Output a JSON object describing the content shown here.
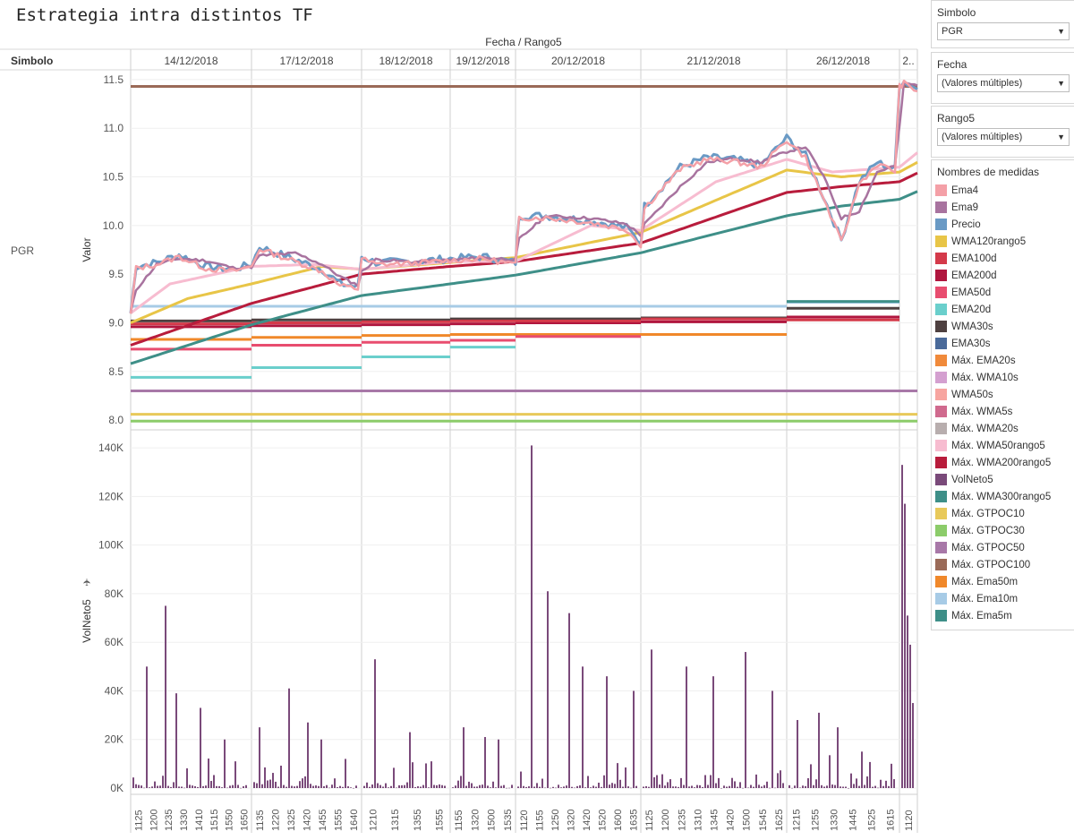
{
  "title": "Estrategia intra distintos TF",
  "header": {
    "top_label": "Fecha / Rango5",
    "row_header": "Simbolo",
    "row_value": "PGR"
  },
  "filters": [
    {
      "label": "Simbolo",
      "value": "PGR"
    },
    {
      "label": "Fecha",
      "value": "(Valores múltiples)"
    },
    {
      "label": "Rango5",
      "value": "(Valores múltiples)"
    }
  ],
  "legend": {
    "title": "Nombres de medidas",
    "items": [
      {
        "name": "Ema4",
        "color": "#f4a0a7"
      },
      {
        "name": "Ema9",
        "color": "#a8739f"
      },
      {
        "name": "Precio",
        "color": "#6a9ac5"
      },
      {
        "name": "WMA120rango5",
        "color": "#e8c547"
      },
      {
        "name": "EMA100d",
        "color": "#d43a4a"
      },
      {
        "name": "EMA200d",
        "color": "#b0163e"
      },
      {
        "name": "EMA50d",
        "color": "#e84d6f"
      },
      {
        "name": "EMA20d",
        "color": "#6acfcc"
      },
      {
        "name": "WMA30s",
        "color": "#4e4040"
      },
      {
        "name": "EMA30s",
        "color": "#4a6a9a"
      },
      {
        "name": "Máx. EMA20s",
        "color": "#f08a3b"
      },
      {
        "name": "Máx. WMA10s",
        "color": "#d4a0d0"
      },
      {
        "name": "WMA50s",
        "color": "#f7a5a0"
      },
      {
        "name": "Máx. WMA5s",
        "color": "#d06a8e"
      },
      {
        "name": "Máx. WMA20s",
        "color": "#b8aeae"
      },
      {
        "name": "Máx. WMA50rango5",
        "color": "#f7bcd0"
      },
      {
        "name": "Máx. WMA200rango5",
        "color": "#b81c3c"
      },
      {
        "name": "VolNeto5",
        "color": "#7a4a7a"
      },
      {
        "name": "Máx. WMA300rango5",
        "color": "#3e8f88"
      },
      {
        "name": "Máx. GTPOC10",
        "color": "#e8c95a"
      },
      {
        "name": "Máx. GTPOC30",
        "color": "#8ccc6a"
      },
      {
        "name": "Máx. GTPOC50",
        "color": "#a878a8"
      },
      {
        "name": "Máx. GTPOC100",
        "color": "#9a6a58"
      },
      {
        "name": "Máx. Ema50m",
        "color": "#f0882a"
      },
      {
        "name": "Máx. Ema10m",
        "color": "#a7cbe6"
      },
      {
        "name": "Máx. Ema5m",
        "color": "#3e8f88"
      }
    ]
  },
  "chart_data": {
    "type": "line",
    "dates": [
      "14/12/2018",
      "17/12/2018",
      "18/12/2018",
      "19/12/2018",
      "20/12/2018",
      "21/12/2018",
      "26/12/2018",
      "2.."
    ],
    "x_tick_labels": [
      [
        "1125",
        "1200",
        "1235",
        "1330",
        "1410",
        "1515",
        "1550",
        "1650"
      ],
      [
        "1135",
        "1220",
        "1325",
        "1420",
        "1455",
        "1555",
        "1640"
      ],
      [
        "1210",
        "1315",
        "1355",
        "1555"
      ],
      [
        "1155",
        "1320",
        "1500",
        "1535"
      ],
      [
        "1120",
        "1155",
        "1250",
        "1320",
        "1420",
        "1520",
        "1600",
        "1635"
      ],
      [
        "1125",
        "1200",
        "1235",
        "1310",
        "1345",
        "1420",
        "1500",
        "1545",
        "1625"
      ],
      [
        "1215",
        "1255",
        "1330",
        "1445",
        "1525",
        "1615"
      ],
      [
        "1120"
      ]
    ],
    "y_axes": [
      {
        "label": "Valor",
        "ticks": [
          8.0,
          8.5,
          9.0,
          9.5,
          10.0,
          10.5,
          11.0,
          11.5
        ],
        "range": [
          7.9,
          11.6
        ]
      },
      {
        "label": "VolNeto5",
        "ticks": [
          "0K",
          "20K",
          "40K",
          "60K",
          "80K",
          "100K",
          "120K",
          "140K"
        ],
        "range": [
          0,
          143000
        ]
      }
    ],
    "level_series": [
      {
        "name": "Máx. GTPOC100",
        "value": 11.43
      },
      {
        "name": "Máx. GTPOC50",
        "value": 8.3
      },
      {
        "name": "Máx. GTPOC10",
        "value": 8.06
      },
      {
        "name": "Máx. GTPOC30",
        "value": 7.99
      }
    ],
    "daily_levels": [
      {
        "name": "Máx. Ema10m",
        "values": [
          9.17,
          9.17,
          9.17,
          9.17,
          9.17,
          9.17,
          9.21,
          null
        ]
      },
      {
        "name": "Máx. Ema5m",
        "values": [
          null,
          null,
          null,
          null,
          null,
          null,
          9.22,
          null
        ]
      },
      {
        "name": "WMA30s",
        "values": [
          9.02,
          9.03,
          9.03,
          9.04,
          9.04,
          9.05,
          9.15,
          null
        ]
      },
      {
        "name": "EMA200d",
        "values": [
          8.96,
          8.97,
          8.98,
          8.99,
          9.0,
          9.01,
          9.06,
          null
        ]
      },
      {
        "name": "EMA100d",
        "values": [
          8.99,
          9.0,
          9.01,
          9.02,
          9.02,
          9.04,
          9.03,
          null
        ]
      },
      {
        "name": "Máx. Ema50m",
        "values": [
          8.83,
          8.85,
          8.87,
          8.88,
          8.88,
          8.88,
          null,
          null
        ]
      },
      {
        "name": "EMA50d",
        "values": [
          8.73,
          8.77,
          8.8,
          8.82,
          8.86,
          null,
          null,
          null
        ]
      },
      {
        "name": "EMA20d",
        "values": [
          8.44,
          8.54,
          8.65,
          8.75,
          null,
          null,
          null,
          null
        ]
      }
    ],
    "vol_series_name": "VolNeto5",
    "vol_peaks": [
      {
        "date_index": 0,
        "values_k": [
          50,
          75,
          39,
          33,
          20,
          11
        ]
      },
      {
        "date_index": 1,
        "values_k": [
          25,
          41,
          27,
          20,
          12
        ]
      },
      {
        "date_index": 2,
        "values_k": [
          53,
          23,
          11
        ]
      },
      {
        "date_index": 3,
        "values_k": [
          25,
          21,
          20
        ]
      },
      {
        "date_index": 4,
        "values_k": [
          141,
          81,
          72,
          50,
          46,
          40
        ]
      },
      {
        "date_index": 5,
        "values_k": [
          57,
          50,
          46,
          56,
          40
        ]
      },
      {
        "date_index": 6,
        "values_k": [
          28,
          31,
          25,
          15,
          10
        ]
      },
      {
        "date_index": 7,
        "values_k": [
          133,
          117,
          71,
          59,
          35
        ]
      }
    ]
  }
}
